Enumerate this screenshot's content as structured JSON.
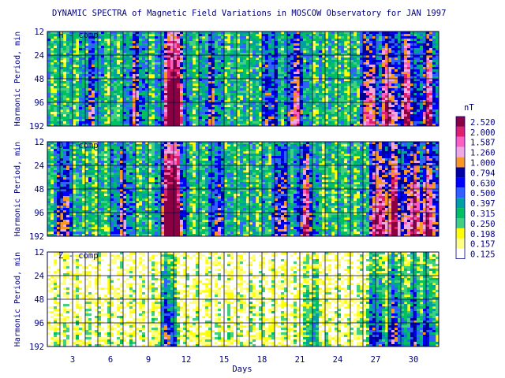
{
  "chart_data": {
    "type": "heatmap",
    "title": "DYNAMIC SPECTRA of Magnetic Field Variations in MOSCOW Observatory for JAN 1997",
    "xlabel": "Days",
    "ylabel": "Harmonic Period, min",
    "x_ticks": [
      "3",
      "6",
      "9",
      "12",
      "15",
      "18",
      "21",
      "24",
      "27",
      "30"
    ],
    "xlim": [
      1,
      32
    ],
    "y_ticks": [
      "12",
      "24",
      "48",
      "96",
      "192"
    ],
    "y_scale": "log",
    "colorbar": {
      "unit": "nT",
      "levels": [
        "2.520",
        "2.000",
        "1.587",
        "1.260",
        "1.000",
        "0.794",
        "0.630",
        "0.500",
        "0.397",
        "0.315",
        "0.250",
        "0.198",
        "0.157",
        "0.125"
      ],
      "colors": [
        "#8b0040",
        "#e0206a",
        "#ff60c0",
        "#f0a8e0",
        "#f89820",
        "#0000a0",
        "#0000ff",
        "#3060ff",
        "#00a0a0",
        "#00c060",
        "#40d080",
        "#ffff00",
        "#ffff80",
        "#ffffff"
      ]
    },
    "panels": [
      {
        "label": "H - comp",
        "active_days": [
          {
            "day": 10.7,
            "strength": 0.95
          },
          {
            "day": 11.3,
            "strength": 0.85
          },
          {
            "day": 20.7,
            "strength": 0.7
          },
          {
            "day": 26.5,
            "strength": 0.8
          },
          {
            "day": 28.0,
            "strength": 0.9
          },
          {
            "day": 29.5,
            "strength": 0.85
          },
          {
            "day": 31.2,
            "strength": 0.8
          },
          {
            "day": 8.0,
            "strength": 0.55
          },
          {
            "day": 14.0,
            "strength": 0.45
          },
          {
            "day": 18.7,
            "strength": 0.45
          },
          {
            "day": 4.5,
            "strength": 0.4
          }
        ]
      },
      {
        "label": "D - comp",
        "active_days": [
          {
            "day": 10.6,
            "strength": 1.0
          },
          {
            "day": 11.2,
            "strength": 0.9
          },
          {
            "day": 19.5,
            "strength": 0.55
          },
          {
            "day": 21.5,
            "strength": 0.75
          },
          {
            "day": 27.2,
            "strength": 0.95
          },
          {
            "day": 28.5,
            "strength": 0.95
          },
          {
            "day": 30.0,
            "strength": 0.9
          },
          {
            "day": 31.3,
            "strength": 0.85
          },
          {
            "day": 2.3,
            "strength": 0.55
          },
          {
            "day": 7.0,
            "strength": 0.5
          },
          {
            "day": 14.5,
            "strength": 0.45
          }
        ]
      },
      {
        "label": "Z - comp",
        "active_days": [
          {
            "day": 10.6,
            "strength": 0.7
          },
          {
            "day": 27.0,
            "strength": 0.65
          },
          {
            "day": 28.5,
            "strength": 0.75
          },
          {
            "day": 30.0,
            "strength": 0.6
          },
          {
            "day": 31.2,
            "strength": 0.55
          },
          {
            "day": 22.0,
            "strength": 0.35
          }
        ]
      }
    ]
  }
}
